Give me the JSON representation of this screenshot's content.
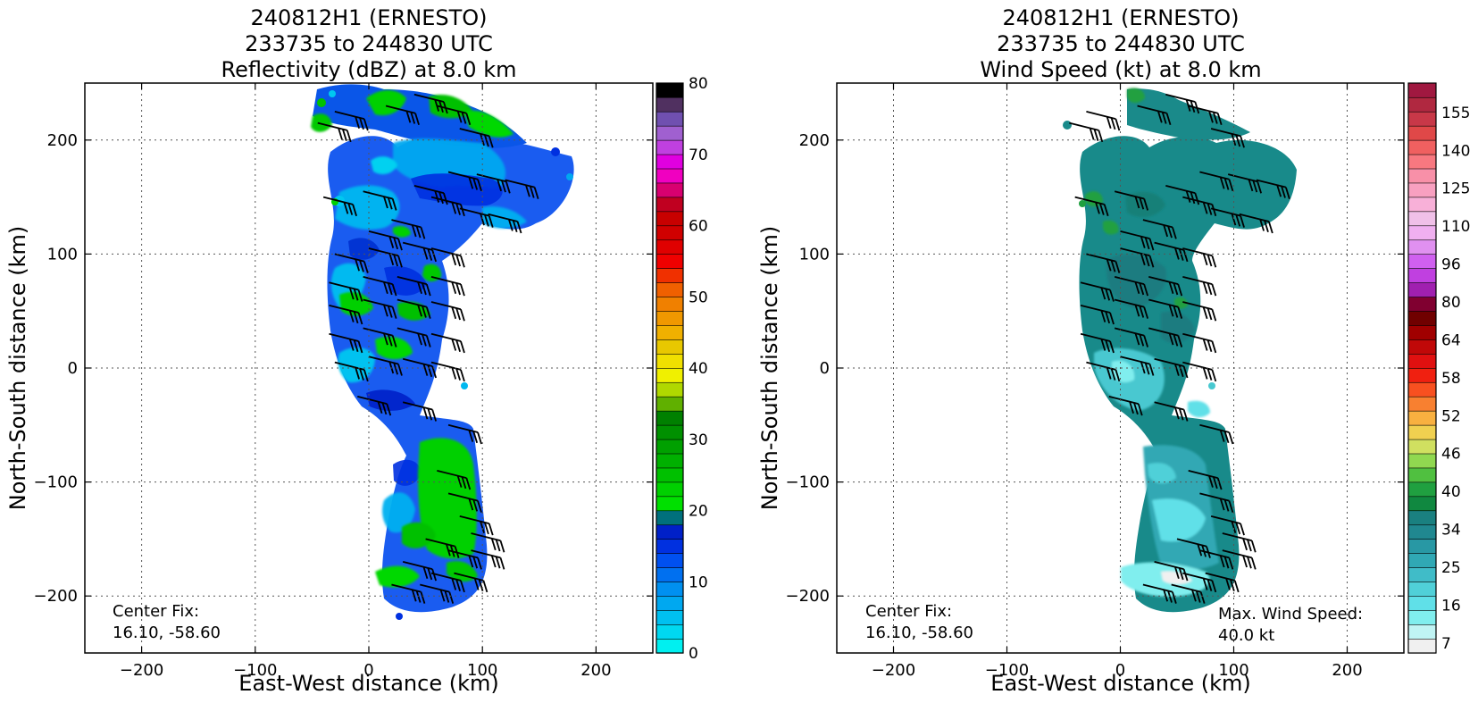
{
  "chart_data": [
    {
      "type": "heatmap",
      "title": [
        "240812H1 (ERNESTO)",
        "233735 to 244830 UTC",
        "Reflectivity (dBZ) at 8.0 km"
      ],
      "xlabel": "East-West distance (km)",
      "ylabel": "North-South distance (km)",
      "xlim": [
        -250,
        250
      ],
      "ylim": [
        -250,
        250
      ],
      "xticks": [
        -200,
        -100,
        0,
        100,
        200
      ],
      "yticks": [
        -200,
        -100,
        0,
        100,
        200
      ],
      "xtick_labels": [
        "−200",
        "−100",
        "0",
        "100",
        "200"
      ],
      "ytick_labels": [
        "−200",
        "−100",
        "0",
        "100",
        "200"
      ],
      "grid": true,
      "colorbar": {
        "min": 0,
        "max": 80,
        "ticks": [
          0,
          10,
          20,
          30,
          40,
          50,
          60,
          70,
          80
        ],
        "tick_labels": [
          "0",
          "10",
          "20",
          "30",
          "40",
          "50",
          "60",
          "70",
          "80"
        ],
        "colors": [
          "#00f0f0",
          "#00d8f0",
          "#00c0f0",
          "#00a8f0",
          "#0090f0",
          "#0070f0",
          "#0050f0",
          "#0030e0",
          "#0020c8",
          "#00707c",
          "#00e000",
          "#00d000",
          "#00c000",
          "#00b000",
          "#00a000",
          "#009000",
          "#008000",
          "#60b000",
          "#b0d800",
          "#f0f000",
          "#f0e000",
          "#e8c800",
          "#f0b000",
          "#f09800",
          "#f08000",
          "#f06000",
          "#f03000",
          "#f00000",
          "#e00000",
          "#d00000",
          "#c80000",
          "#c00020",
          "#d80070",
          "#f000c0",
          "#e000e0",
          "#c040e0",
          "#a060d0",
          "#7050b0",
          "#503060",
          "#000000"
        ]
      },
      "annotations": [
        {
          "text": "Center Fix:",
          "text2": "16.10, -58.60"
        }
      ]
    },
    {
      "type": "heatmap",
      "title": [
        "240812H1 (ERNESTO)",
        "233735 to 244830 UTC",
        "Wind Speed (kt) at 8.0 km"
      ],
      "xlabel": "East-West distance (km)",
      "ylabel": "North-South distance (km)",
      "xlim": [
        -250,
        250
      ],
      "ylim": [
        -250,
        250
      ],
      "xticks": [
        -200,
        -100,
        0,
        100,
        200
      ],
      "yticks": [
        -200,
        -100,
        0,
        100,
        200
      ],
      "xtick_labels": [
        "−200",
        "−100",
        "0",
        "100",
        "200"
      ],
      "ytick_labels": [
        "−200",
        "−100",
        "0",
        "100",
        "200"
      ],
      "grid": true,
      "colorbar": {
        "tick_labels": [
          "7",
          "16",
          "25",
          "34",
          "40",
          "46",
          "52",
          "58",
          "64",
          "80",
          "96",
          "110",
          "125",
          "140",
          "155"
        ],
        "colors": [
          "#f0f0f0",
          "#c0f4f4",
          "#80eeee",
          "#60e0e8",
          "#50d0d8",
          "#40bcc8",
          "#30a8b4",
          "#2898a4",
          "#208890",
          "#1a8080",
          "#108840",
          "#20a040",
          "#50c040",
          "#90d850",
          "#d0e060",
          "#f0d050",
          "#f8b040",
          "#f88030",
          "#f85020",
          "#f02010",
          "#e01010",
          "#c00808",
          "#a00000",
          "#700000",
          "#800030",
          "#a020b0",
          "#c040e0",
          "#d060f0",
          "#e090f0",
          "#f0b0f0",
          "#f0c0e8",
          "#f8b0d8",
          "#f8a0c0",
          "#f890a8",
          "#f87880",
          "#f06060",
          "#e04848",
          "#c83848",
          "#b02840",
          "#a01840"
        ]
      },
      "annotations": [
        {
          "text": "Center Fix:",
          "text2": "16.10, -58.60"
        },
        {
          "text": "Max. Wind Speed:",
          "text2": "40.0 kt"
        }
      ]
    }
  ]
}
